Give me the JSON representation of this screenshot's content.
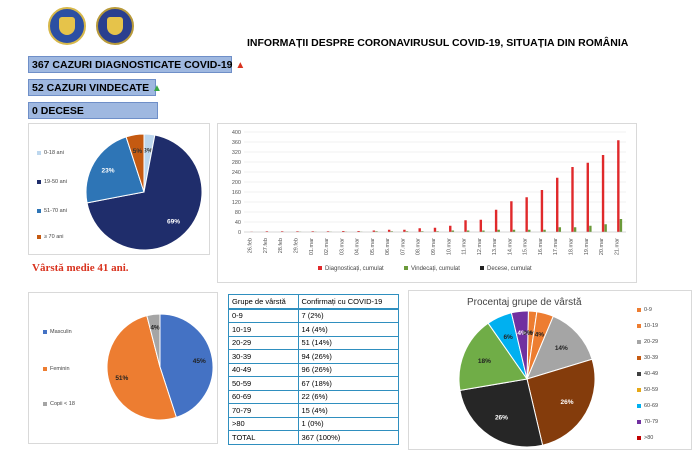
{
  "header": {
    "title": "INFORMAȚII DESPRE CORONAVIRUSUL COVID-19, SITUAȚIA DIN ROMÂNIA"
  },
  "stats": {
    "diagnosed": "367 CAZURI DIAGNOSTICATE COVID-19",
    "recovered": "52 CAZURI VINDECATE",
    "deaths": "0 DECESE"
  },
  "avg_age": "Vârstă medie 41 ani.",
  "colors": {
    "blue": "#4472c4",
    "orange": "#ed7d31",
    "gray": "#a5a5a5",
    "navy": "#1f2d6b",
    "red": "#e0292b",
    "green": "#6b9a3a"
  },
  "chart_data": [
    {
      "type": "pie",
      "categories": [
        "0-18 ani",
        "19-50 ani",
        "51-70 ani",
        "≥ 70 ani"
      ],
      "values": [
        3,
        69,
        23,
        5
      ],
      "labels": [
        "3%",
        "69%",
        "23%",
        "5%"
      ],
      "legend": "left"
    },
    {
      "type": "bar",
      "categories": [
        "26.feb",
        "27.feb",
        "28.feb",
        "29.feb",
        "01.mar",
        "02.mar",
        "03.mar",
        "04.mar",
        "05.mar",
        "06.mar",
        "07.mar",
        "08.mar",
        "09.mar",
        "10.mar",
        "11.mar",
        "12.mar",
        "13.mar",
        "14.mar",
        "15.mar",
        "16.mar",
        "17.mar",
        "18.mar",
        "19.mar",
        "20.mar",
        "21.mar"
      ],
      "series": [
        {
          "name": "Diagnosticați, cumulat",
          "values": [
            1,
            3,
            3,
            3,
            3,
            3,
            4,
            4,
            6,
            9,
            9,
            15,
            17,
            25,
            47,
            49,
            89,
            123,
            139,
            168,
            217,
            260,
            277,
            308,
            367
          ]
        },
        {
          "name": "Vindecați, cumulat",
          "values": [
            0,
            0,
            0,
            1,
            1,
            1,
            1,
            1,
            3,
            3,
            3,
            3,
            3,
            6,
            6,
            6,
            9,
            9,
            9,
            9,
            19,
            19,
            25,
            31,
            52
          ]
        },
        {
          "name": "Decese, cumulat",
          "values": [
            0,
            0,
            0,
            0,
            0,
            0,
            0,
            0,
            0,
            0,
            0,
            0,
            0,
            0,
            0,
            0,
            0,
            0,
            0,
            0,
            0,
            0,
            0,
            0,
            0
          ]
        }
      ],
      "yticks": [
        "0",
        "40",
        "80",
        "120",
        "160",
        "200",
        "240",
        "280",
        "320",
        "360",
        "400"
      ],
      "ylim": [
        0,
        400
      ],
      "legend": "bottom"
    },
    {
      "type": "pie",
      "categories": [
        "Masculin",
        "Feminin",
        "Copii < 18"
      ],
      "values": [
        45,
        51,
        4
      ],
      "labels": [
        "45%",
        "51%",
        "4%"
      ],
      "legend": "left"
    },
    {
      "type": "table",
      "headers": [
        "Grupe de vârstă",
        "Confirmați cu COVID-19"
      ],
      "rows": [
        [
          "0-9",
          "7 (2%)"
        ],
        [
          "10-19",
          "14 (4%)"
        ],
        [
          "20-29",
          "51 (14%)"
        ],
        [
          "30-39",
          "94 (26%)"
        ],
        [
          "40-49",
          "96 (26%)"
        ],
        [
          "50-59",
          "67 (18%)"
        ],
        [
          "60-69",
          "22 (6%)"
        ],
        [
          "70-79",
          "15 (4%)"
        ],
        [
          ">80",
          "1 (0%)"
        ],
        [
          "TOTAL",
          "367 (100%)"
        ]
      ]
    },
    {
      "type": "pie",
      "title": "Procentaj grupe de vârstă",
      "categories": [
        "0-9",
        "10-19",
        "20-29",
        "30-39",
        "40-49",
        "50-59",
        "60-69",
        "70-79",
        ">80"
      ],
      "values": [
        2,
        4,
        14,
        26,
        26,
        18,
        6,
        4,
        0
      ],
      "labels": [
        "2%",
        "4%",
        "14%",
        "26%",
        "26%",
        "18%",
        "6%",
        "4%",
        "0%"
      ],
      "legend": "right"
    }
  ]
}
